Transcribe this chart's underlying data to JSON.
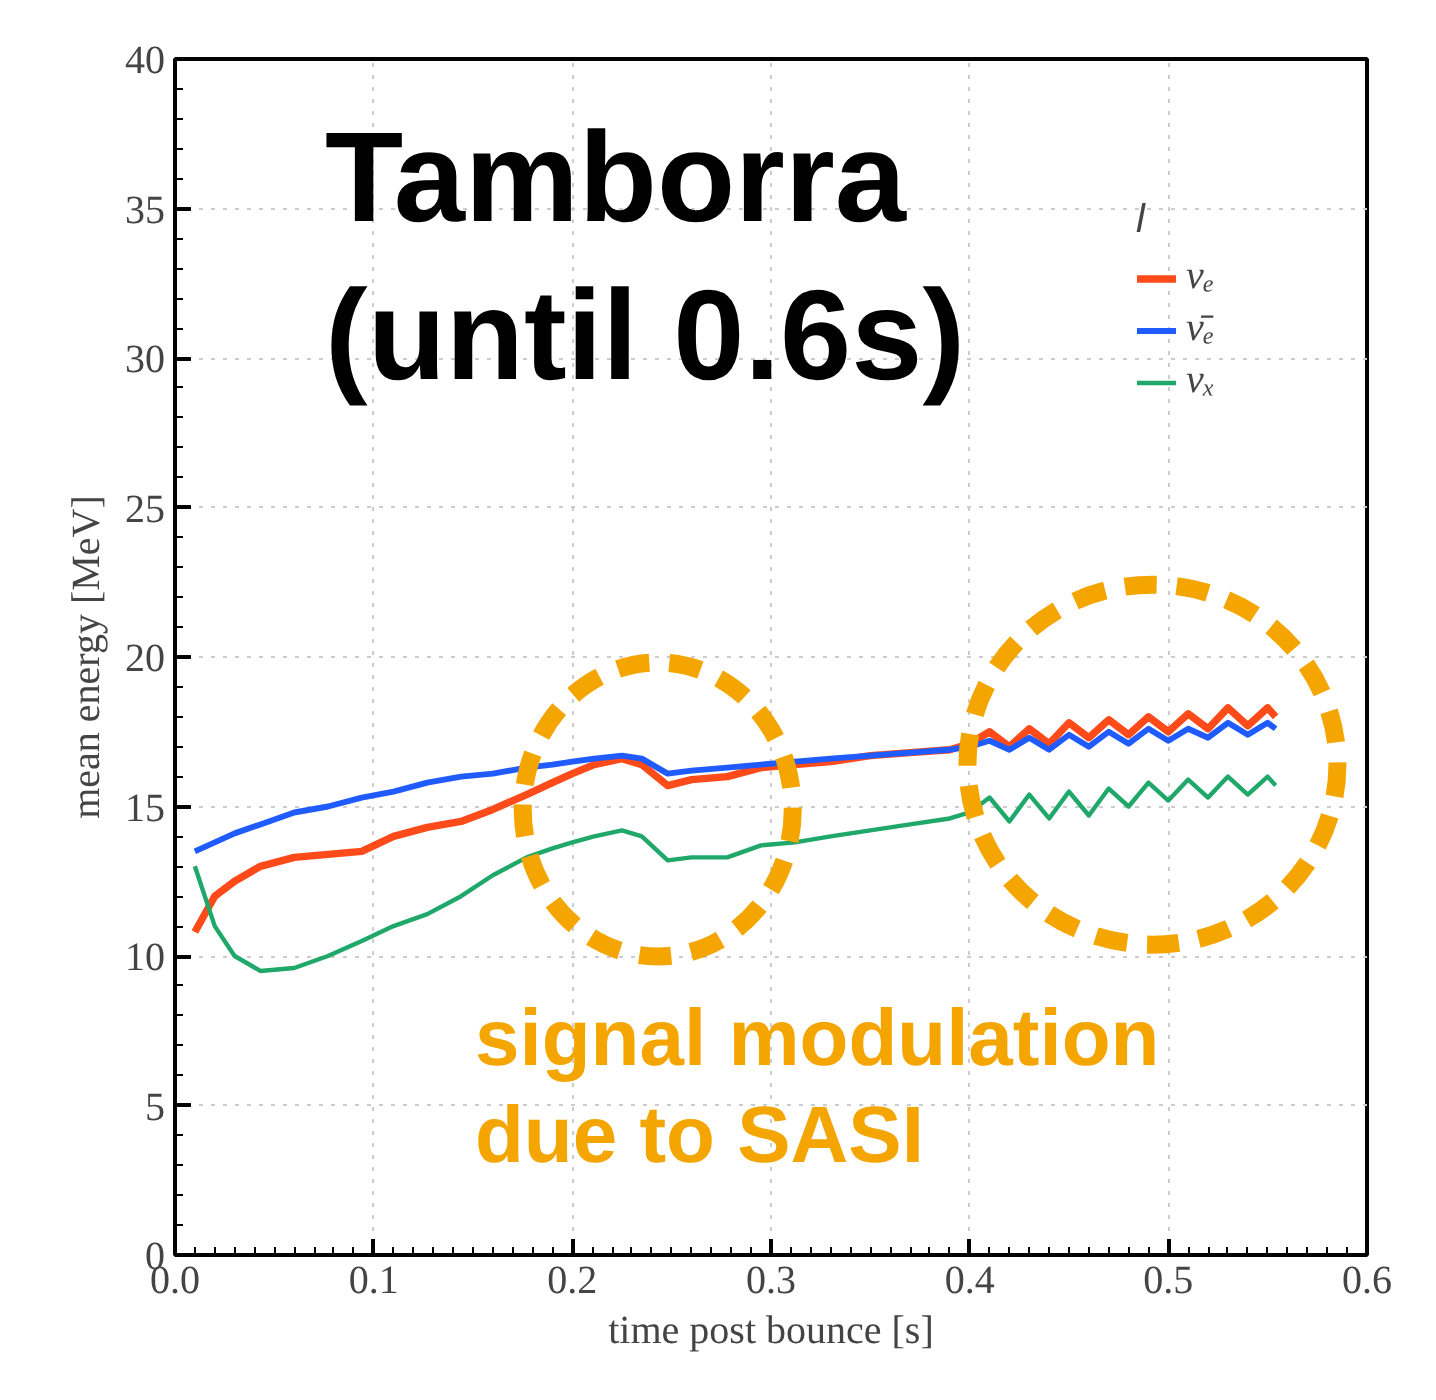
{
  "chart_data": {
    "type": "line",
    "xlabel": "time post bounce [s]",
    "ylabel": "mean energy [MeV]",
    "legend_title": "l",
    "x": [
      0.01,
      0.02,
      0.03,
      0.043,
      0.06,
      0.077,
      0.094,
      0.11,
      0.127,
      0.144,
      0.16,
      0.177,
      0.19,
      0.2,
      0.211,
      0.225,
      0.235,
      0.248,
      0.26,
      0.278,
      0.295,
      0.312,
      0.33,
      0.35,
      0.37,
      0.39,
      0.4,
      0.41,
      0.42,
      0.43,
      0.44,
      0.45,
      0.46,
      0.47,
      0.48,
      0.49,
      0.5,
      0.51,
      0.52,
      0.53,
      0.54,
      0.55,
      0.554
    ],
    "series": [
      {
        "name": "νₑ",
        "color": "#ff4a1a",
        "values": [
          10.8,
          12.0,
          12.5,
          13.0,
          13.3,
          13.4,
          13.5,
          14.0,
          14.3,
          14.5,
          14.9,
          15.4,
          15.8,
          16.1,
          16.4,
          16.6,
          16.4,
          15.7,
          15.9,
          16.0,
          16.3,
          16.4,
          16.5,
          16.7,
          16.8,
          16.9,
          17.1,
          17.5,
          17.0,
          17.6,
          17.1,
          17.8,
          17.3,
          17.9,
          17.4,
          18.0,
          17.5,
          18.1,
          17.6,
          18.3,
          17.7,
          18.3,
          18.0
        ]
      },
      {
        "name": "ν̄ₑ",
        "color": "#1f5bff",
        "values": [
          13.5,
          13.8,
          14.1,
          14.4,
          14.8,
          15.0,
          15.3,
          15.5,
          15.8,
          16.0,
          16.1,
          16.3,
          16.4,
          16.5,
          16.6,
          16.7,
          16.6,
          16.1,
          16.2,
          16.3,
          16.4,
          16.5,
          16.6,
          16.7,
          16.8,
          16.9,
          17.0,
          17.2,
          16.9,
          17.3,
          16.9,
          17.4,
          17.0,
          17.5,
          17.1,
          17.6,
          17.2,
          17.6,
          17.3,
          17.8,
          17.4,
          17.8,
          17.6
        ]
      },
      {
        "name": "νₓ",
        "color": "#1fa86a",
        "values": [
          13.0,
          11.0,
          10.0,
          9.5,
          9.6,
          10.0,
          10.5,
          11.0,
          11.4,
          12.0,
          12.7,
          13.3,
          13.6,
          13.8,
          14.0,
          14.2,
          14.0,
          13.2,
          13.3,
          13.3,
          13.7,
          13.8,
          14.0,
          14.2,
          14.4,
          14.6,
          14.8,
          15.3,
          14.5,
          15.4,
          14.6,
          15.5,
          14.7,
          15.6,
          15.0,
          15.8,
          15.2,
          15.9,
          15.3,
          16.0,
          15.4,
          16.0,
          15.7
        ]
      }
    ],
    "xlim": [
      0,
      0.6
    ],
    "ylim": [
      0,
      40
    ],
    "xticks": [
      {
        "value": 0,
        "label": "0.0"
      },
      0.1,
      0.2,
      0.3,
      0.4,
      0.5,
      0.6
    ],
    "yticks": [
      0,
      5,
      10,
      15,
      20,
      25,
      30,
      35,
      40
    ],
    "grid": true,
    "legend": "top right",
    "line_style": "solid",
    "marker": "none",
    "annotations": [
      "Tamborra\n(until 0.6s)",
      "signal modulation\ndue to SASI"
    ]
  }
}
